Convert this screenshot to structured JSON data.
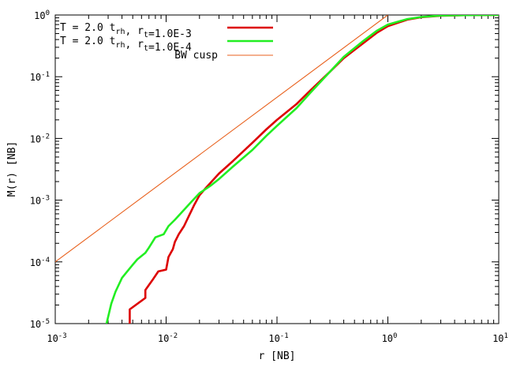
{
  "chart_data": {
    "type": "line",
    "title": "",
    "xlabel": "r [NB]",
    "ylabel": "M(r) [NB]",
    "xscale": "log",
    "yscale": "log",
    "xlim": [
      0.001,
      10
    ],
    "ylim": [
      1e-05,
      1
    ],
    "grid": false,
    "legend_position": "top-left",
    "x_ticks": [
      {
        "base": "10",
        "exp": "-3",
        "value": 0.001
      },
      {
        "base": "10",
        "exp": "-2",
        "value": 0.01
      },
      {
        "base": "10",
        "exp": "-1",
        "value": 0.1
      },
      {
        "base": "10",
        "exp": "0",
        "value": 1
      },
      {
        "base": "10",
        "exp": "1",
        "value": 10
      }
    ],
    "y_ticks": [
      {
        "base": "10",
        "exp": "-5",
        "value": 1e-05
      },
      {
        "base": "10",
        "exp": "-4",
        "value": 0.0001
      },
      {
        "base": "10",
        "exp": "-3",
        "value": 0.001
      },
      {
        "base": "10",
        "exp": "-2",
        "value": 0.01
      },
      {
        "base": "10",
        "exp": "-1",
        "value": 0.1
      },
      {
        "base": "10",
        "exp": "0",
        "value": 1
      }
    ],
    "series": [
      {
        "legend_parts": [
          [
            "T = 2.0 t",
            ""
          ],
          [
            "rh",
            "sub"
          ],
          [
            ", r",
            ""
          ],
          [
            "t",
            "sub"
          ],
          [
            "=1.0E-3",
            ""
          ]
        ],
        "color": "#dd0000",
        "stroke": "thick",
        "x": [
          0.0047,
          0.0047,
          0.0065,
          0.0065,
          0.0075,
          0.0085,
          0.01,
          0.0105,
          0.0115,
          0.012,
          0.013,
          0.0145,
          0.016,
          0.018,
          0.02,
          0.023,
          0.03,
          0.04,
          0.06,
          0.08,
          0.1,
          0.15,
          0.2,
          0.3,
          0.4,
          0.6,
          0.8,
          1.0,
          1.5,
          2,
          3,
          5,
          10
        ],
        "y": [
          1e-05,
          1.7e-05,
          2.6e-05,
          3.5e-05,
          5e-05,
          7e-05,
          7.5e-05,
          0.00012,
          0.00016,
          0.00021,
          0.00028,
          0.00038,
          0.00055,
          0.00085,
          0.0012,
          0.0016,
          0.0027,
          0.0043,
          0.0085,
          0.014,
          0.02,
          0.036,
          0.06,
          0.12,
          0.2,
          0.35,
          0.52,
          0.66,
          0.84,
          0.92,
          0.975,
          0.995,
          1.0
        ]
      },
      {
        "legend_parts": [
          [
            "T = 2.0 t",
            ""
          ],
          [
            "rh",
            "sub"
          ],
          [
            ", r",
            ""
          ],
          [
            "t",
            "sub"
          ],
          [
            "=1.0E-4",
            ""
          ]
        ],
        "color": "#22ee22",
        "stroke": "thick",
        "x": [
          0.0029,
          0.0032,
          0.0035,
          0.004,
          0.0044,
          0.005,
          0.0055,
          0.0065,
          0.007,
          0.008,
          0.0095,
          0.0105,
          0.012,
          0.014,
          0.017,
          0.02,
          0.025,
          0.03,
          0.04,
          0.06,
          0.08,
          0.1,
          0.15,
          0.2,
          0.3,
          0.4,
          0.6,
          0.8,
          1.0,
          1.5,
          2,
          3,
          5,
          10
        ],
        "y": [
          1e-05,
          2.1e-05,
          3.3e-05,
          5.5e-05,
          6.8e-05,
          9e-05,
          0.00011,
          0.00014,
          0.00017,
          0.00025,
          0.00028,
          0.00038,
          0.00048,
          0.00065,
          0.00095,
          0.0013,
          0.0017,
          0.0022,
          0.0035,
          0.0065,
          0.011,
          0.016,
          0.031,
          0.055,
          0.12,
          0.21,
          0.38,
          0.56,
          0.7,
          0.86,
          0.93,
          0.98,
          0.995,
          1.0
        ]
      },
      {
        "legend_parts": [
          [
            "BW cusp",
            ""
          ]
        ],
        "color": "#e8601c",
        "stroke": "thin",
        "x": [
          0.001,
          1.0
        ],
        "y": [
          0.0001,
          1.0
        ]
      }
    ]
  }
}
